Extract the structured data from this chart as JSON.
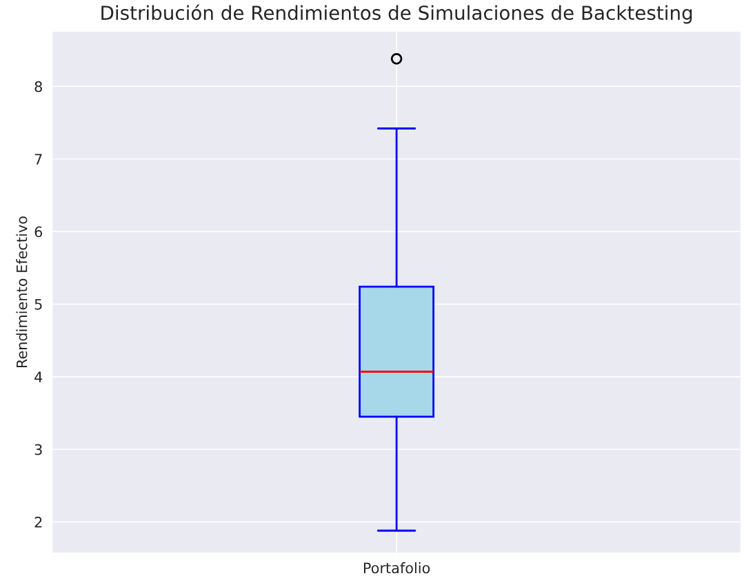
{
  "chart_data": {
    "type": "box",
    "title": "Distribución de Rendimientos de Simulaciones de Backtesting",
    "ylabel": "Rendimiento Efectivo",
    "categories": [
      "Portafolio"
    ],
    "series": [
      {
        "color": "#a6d8ea",
        "boxes": [
          {
            "low": 1.88,
            "q1": 3.45,
            "median": 4.07,
            "q3": 5.24,
            "high": 7.42,
            "outliers": [
              8.38
            ]
          }
        ]
      }
    ],
    "ylim": [
      1.57,
      8.76
    ],
    "yticks": [
      2,
      3,
      4,
      5,
      6,
      7,
      8
    ],
    "grid": true
  }
}
